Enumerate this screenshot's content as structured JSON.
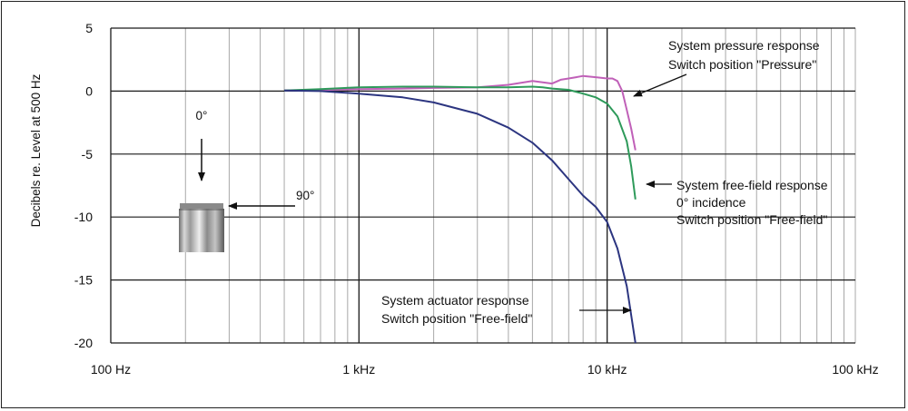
{
  "chart_data": {
    "type": "line",
    "title": "",
    "xlabel": "",
    "ylabel": "Decibels re. Level at 500 Hz",
    "x_scale": "log",
    "xlim": [
      100,
      100000
    ],
    "ylim": [
      -20,
      5
    ],
    "grid": true,
    "x_tick_labels": [
      {
        "value": 100,
        "label": "100 Hz"
      },
      {
        "value": 1000,
        "label": "1 kHz"
      },
      {
        "value": 10000,
        "label": "10 kHz"
      },
      {
        "value": 100000,
        "label": "100 kHz"
      }
    ],
    "y_ticks": [
      5,
      0,
      -5,
      -10,
      -15,
      -20
    ],
    "series": [
      {
        "key": "pressure",
        "color": "#c060b8",
        "x": [
          500,
          700,
          1000,
          1500,
          2000,
          3000,
          4000,
          5000,
          5500,
          6000,
          6500,
          7000,
          7500,
          8000,
          9000,
          10000,
          10500,
          11000,
          11500,
          12000,
          12500,
          13000
        ],
        "y": [
          0.05,
          0.1,
          0.15,
          0.2,
          0.25,
          0.3,
          0.5,
          0.8,
          0.7,
          0.6,
          0.9,
          1.0,
          1.1,
          1.2,
          1.1,
          1.0,
          1.0,
          0.8,
          0.0,
          -1.5,
          -3.0,
          -4.7
        ]
      },
      {
        "key": "free_field",
        "color": "#2e9a5a",
        "x": [
          500,
          700,
          1000,
          1500,
          2000,
          3000,
          4000,
          5000,
          5500,
          6000,
          7000,
          8000,
          9000,
          10000,
          11000,
          12000,
          12500,
          13000
        ],
        "y": [
          0.05,
          0.15,
          0.3,
          0.35,
          0.35,
          0.3,
          0.3,
          0.35,
          0.3,
          0.2,
          0.1,
          -0.2,
          -0.5,
          -1.0,
          -2.0,
          -4.0,
          -6.0,
          -8.6
        ]
      },
      {
        "key": "actuator",
        "color": "#2c3580",
        "x": [
          500,
          700,
          1000,
          1500,
          2000,
          3000,
          4000,
          5000,
          6000,
          7000,
          8000,
          9000,
          10000,
          11000,
          12000,
          13000
        ],
        "y": [
          0.05,
          0.0,
          -0.2,
          -0.5,
          -0.9,
          -1.8,
          -2.9,
          -4.1,
          -5.5,
          -7.0,
          -8.3,
          -9.2,
          -10.4,
          -12.5,
          -15.5,
          -20.0
        ]
      }
    ],
    "annotations": {
      "pressure_line1": "System pressure response",
      "pressure_line2": "Switch position \"Pressure\"",
      "free_field_line1": "System free-field response",
      "free_field_line2": "0° incidence",
      "free_field_line3": "Switch position \"Free-field\"",
      "actuator_line1": "System actuator response",
      "actuator_line2": "Switch position \"Free-field\"",
      "angle_0": "0°",
      "angle_90": "90°"
    }
  }
}
